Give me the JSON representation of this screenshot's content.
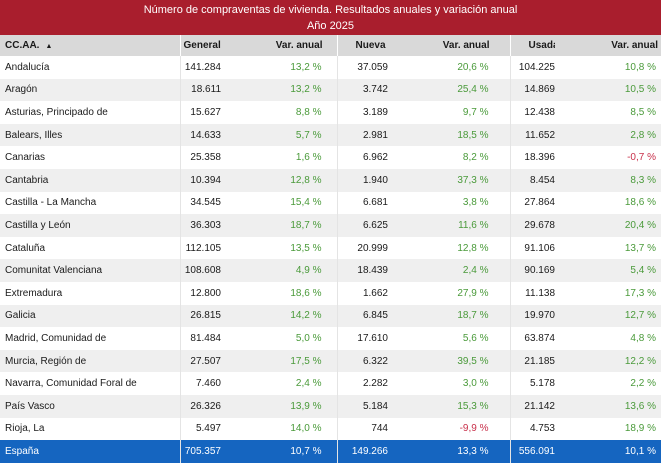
{
  "title": {
    "line1": "Número de compraventas de vivienda. Resultados anuales y variación anual",
    "line2": "Año 2025"
  },
  "headers": {
    "region": "CC.AA.",
    "sort_icon": "▲",
    "general": "General",
    "var1": "Var. anual",
    "nueva": "Nueva",
    "var2": "Var. anual",
    "usada": "Usada",
    "var3": "Var. anual"
  },
  "colors": {
    "header_band": "#a91e2d",
    "positive": "#4a9a3a",
    "negative": "#c8304a",
    "total_row": "#1565c0"
  },
  "rows": [
    {
      "region": "Andalucía",
      "general": "141.284",
      "var_general": "13,2 %",
      "nueva": "37.059",
      "var_nueva": "20,6 %",
      "usada": "104.225",
      "var_usada": "10,8 %"
    },
    {
      "region": "Aragón",
      "general": "18.611",
      "var_general": "13,2 %",
      "nueva": "3.742",
      "var_nueva": "25,4 %",
      "usada": "14.869",
      "var_usada": "10,5 %"
    },
    {
      "region": "Asturias, Principado de",
      "general": "15.627",
      "var_general": "8,8 %",
      "nueva": "3.189",
      "var_nueva": "9,7 %",
      "usada": "12.438",
      "var_usada": "8,5 %"
    },
    {
      "region": "Balears, Illes",
      "general": "14.633",
      "var_general": "5,7 %",
      "nueva": "2.981",
      "var_nueva": "18,5 %",
      "usada": "11.652",
      "var_usada": "2,8 %"
    },
    {
      "region": "Canarias",
      "general": "25.358",
      "var_general": "1,6 %",
      "nueva": "6.962",
      "var_nueva": "8,2 %",
      "usada": "18.396",
      "var_usada": "-0,7 %"
    },
    {
      "region": "Cantabria",
      "general": "10.394",
      "var_general": "12,8 %",
      "nueva": "1.940",
      "var_nueva": "37,3 %",
      "usada": "8.454",
      "var_usada": "8,3 %"
    },
    {
      "region": "Castilla - La Mancha",
      "general": "34.545",
      "var_general": "15,4 %",
      "nueva": "6.681",
      "var_nueva": "3,8 %",
      "usada": "27.864",
      "var_usada": "18,6 %"
    },
    {
      "region": "Castilla y León",
      "general": "36.303",
      "var_general": "18,7 %",
      "nueva": "6.625",
      "var_nueva": "11,6 %",
      "usada": "29.678",
      "var_usada": "20,4 %"
    },
    {
      "region": "Cataluña",
      "general": "112.105",
      "var_general": "13,5 %",
      "nueva": "20.999",
      "var_nueva": "12,8 %",
      "usada": "91.106",
      "var_usada": "13,7 %"
    },
    {
      "region": "Comunitat Valenciana",
      "general": "108.608",
      "var_general": "4,9 %",
      "nueva": "18.439",
      "var_nueva": "2,4 %",
      "usada": "90.169",
      "var_usada": "5,4 %"
    },
    {
      "region": "Extremadura",
      "general": "12.800",
      "var_general": "18,6 %",
      "nueva": "1.662",
      "var_nueva": "27,9 %",
      "usada": "11.138",
      "var_usada": "17,3 %"
    },
    {
      "region": "Galicia",
      "general": "26.815",
      "var_general": "14,2 %",
      "nueva": "6.845",
      "var_nueva": "18,7 %",
      "usada": "19.970",
      "var_usada": "12,7 %"
    },
    {
      "region": "Madrid, Comunidad de",
      "general": "81.484",
      "var_general": "5,0 %",
      "nueva": "17.610",
      "var_nueva": "5,6 %",
      "usada": "63.874",
      "var_usada": "4,8 %"
    },
    {
      "region": "Murcia, Región de",
      "general": "27.507",
      "var_general": "17,5 %",
      "nueva": "6.322",
      "var_nueva": "39,5 %",
      "usada": "21.185",
      "var_usada": "12,2 %"
    },
    {
      "region": "Navarra, Comunidad Foral de",
      "general": "7.460",
      "var_general": "2,4 %",
      "nueva": "2.282",
      "var_nueva": "3,0 %",
      "usada": "5.178",
      "var_usada": "2,2 %"
    },
    {
      "region": "País Vasco",
      "general": "26.326",
      "var_general": "13,9 %",
      "nueva": "5.184",
      "var_nueva": "15,3 %",
      "usada": "21.142",
      "var_usada": "13,6 %"
    },
    {
      "region": "Rioja, La",
      "general": "5.497",
      "var_general": "14,0 %",
      "nueva": "744",
      "var_nueva": "-9,9 %",
      "usada": "4.753",
      "var_usada": "18,9 %"
    }
  ],
  "total": {
    "region": "España",
    "general": "705.357",
    "var_general": "10,7 %",
    "nueva": "149.266",
    "var_nueva": "13,3 %",
    "usada": "556.091",
    "var_usada": "10,1 %"
  }
}
